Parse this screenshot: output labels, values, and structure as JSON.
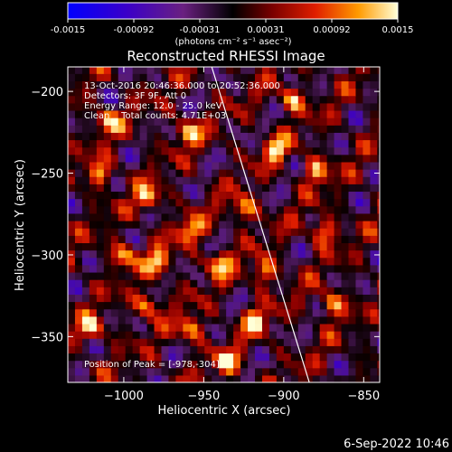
{
  "colorbar": {
    "ticks": [
      "-0.0015",
      "-0.00092",
      "-0.00031",
      "0.00031",
      "0.00092",
      "0.0015"
    ],
    "units": "(photons cm⁻² s⁻¹ asec⁻²)",
    "vmin": -0.0015,
    "vmax": 0.0015
  },
  "chart_data": {
    "type": "heatmap",
    "title": "Reconstructed RHESSI Image",
    "xlabel": "Heliocentric X (arcsec)",
    "ylabel": "Heliocentric Y (arcsec)",
    "xlim": [
      -1035,
      -840
    ],
    "ylim": [
      -378,
      -185
    ],
    "xticks": [
      {
        "value": -1000,
        "label": "−1000"
      },
      {
        "value": -950,
        "label": "−950"
      },
      {
        "value": -900,
        "label": "−900"
      },
      {
        "value": -850,
        "label": "−850"
      }
    ],
    "yticks": [
      {
        "value": -200,
        "label": "−200"
      },
      {
        "value": -250,
        "label": "−250"
      },
      {
        "value": -300,
        "label": "−300"
      },
      {
        "value": -350,
        "label": "−350"
      }
    ],
    "limb": [
      [
        -945,
        -185
      ],
      [
        -884,
        -378
      ]
    ],
    "peak": [
      -978,
      -304
    ],
    "bright_sources": [
      {
        "x": -1010,
        "y": -218
      },
      {
        "x": -960,
        "y": -225
      },
      {
        "x": -1015,
        "y": -250
      },
      {
        "x": -985,
        "y": -265
      },
      {
        "x": -1000,
        "y": -300
      },
      {
        "x": -978,
        "y": -304
      },
      {
        "x": -958,
        "y": -285
      },
      {
        "x": -940,
        "y": -305
      },
      {
        "x": -985,
        "y": -330
      },
      {
        "x": -958,
        "y": -345
      },
      {
        "x": -918,
        "y": -340
      },
      {
        "x": -912,
        "y": -310
      },
      {
        "x": -880,
        "y": -248
      },
      {
        "x": -875,
        "y": -285
      },
      {
        "x": -905,
        "y": -235
      },
      {
        "x": -925,
        "y": -272
      },
      {
        "x": -1020,
        "y": -345
      },
      {
        "x": -935,
        "y": -365
      },
      {
        "x": -870,
        "y": -330
      },
      {
        "x": -895,
        "y": -205
      }
    ],
    "info": [
      "13-Oct-2016 20:46:36.000 to 20:52:36.000",
      "Detectors: 3F 9F, Att 0",
      "Energy Range: 12.0 - 25.0 keV",
      "Clean    Total counts: 4.71E+03"
    ],
    "peak_label": "Position of Peak = [-978,-304]"
  },
  "timestamp": "6-Sep-2022 10:46"
}
